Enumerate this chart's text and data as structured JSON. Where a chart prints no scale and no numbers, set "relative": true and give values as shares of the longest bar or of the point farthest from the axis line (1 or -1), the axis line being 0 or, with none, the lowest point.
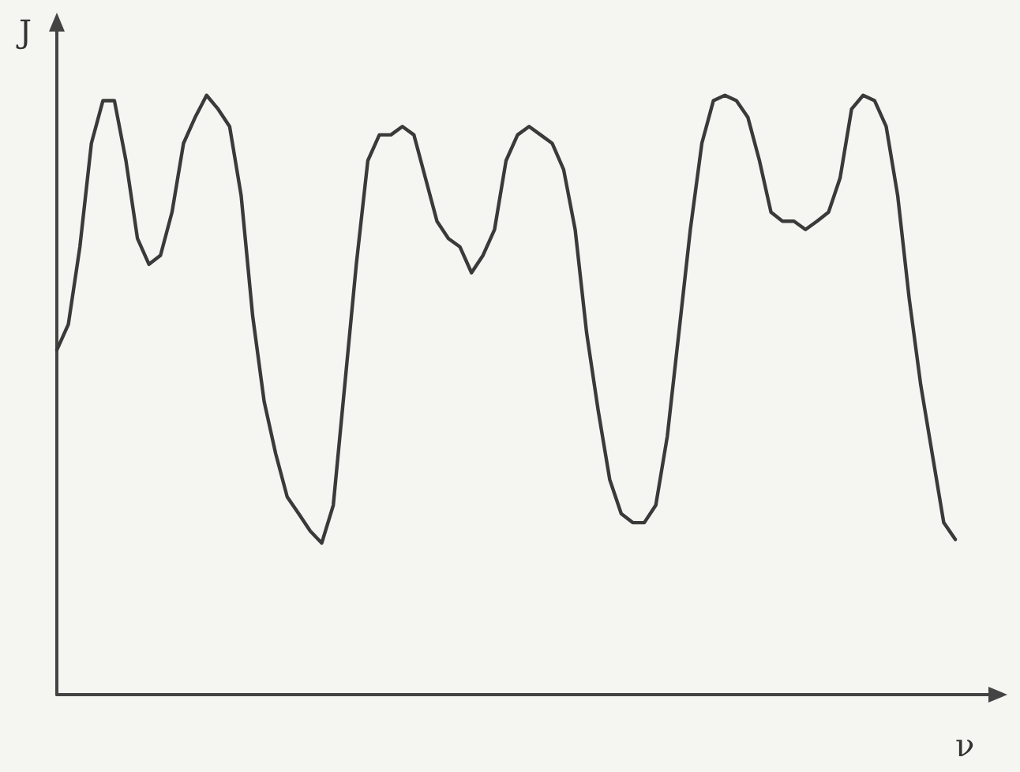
{
  "chart_data": {
    "type": "line",
    "relative": true,
    "xlabel": "ν",
    "ylabel": "J",
    "color": "#3a3a3a",
    "grid": false,
    "marker": "none",
    "line_style": "solid",
    "categories": [
      null,
      null,
      null,
      null,
      null,
      null,
      null,
      null,
      null,
      null,
      null,
      null,
      null,
      null,
      null,
      null,
      null,
      null,
      null,
      null,
      null,
      null,
      null,
      null,
      null,
      null,
      null,
      null,
      null,
      null,
      null,
      null,
      null,
      null,
      null,
      null,
      null,
      null,
      null,
      null,
      null,
      null,
      null,
      null,
      null,
      null,
      null,
      null,
      null,
      null,
      null,
      null,
      null,
      null,
      null,
      null,
      null,
      null,
      null,
      null,
      null,
      null,
      null,
      null,
      null,
      null,
      null,
      null,
      null,
      null,
      null,
      null,
      null,
      null,
      null,
      null,
      null,
      null,
      null
    ],
    "values": [
      0.575,
      0.618,
      0.747,
      0.92,
      0.991,
      0.991,
      0.891,
      0.761,
      0.718,
      0.733,
      0.805,
      0.92,
      0.963,
      1,
      0.977,
      0.948,
      0.833,
      0.632,
      0.489,
      0.402,
      0.33,
      0.302,
      0.273,
      0.253,
      0.316,
      0.517,
      0.718,
      0.891,
      0.934,
      0.934,
      0.948,
      0.934,
      0.862,
      0.79,
      0.761,
      0.747,
      0.704,
      0.733,
      0.776,
      0.891,
      0.934,
      0.948,
      0.934,
      0.92,
      0.876,
      0.776,
      0.603,
      0.474,
      0.359,
      0.302,
      0.287,
      0.287,
      0.316,
      0.431,
      0.603,
      0.776,
      0.92,
      0.991,
      1,
      0.991,
      0.963,
      0.891,
      0.805,
      0.79,
      0.79,
      0.776,
      0.79,
      0.805,
      0.862,
      0.977,
      1,
      0.991,
      0.948,
      0.833,
      0.661,
      0.517,
      0.402,
      0.287,
      0.259
    ]
  }
}
